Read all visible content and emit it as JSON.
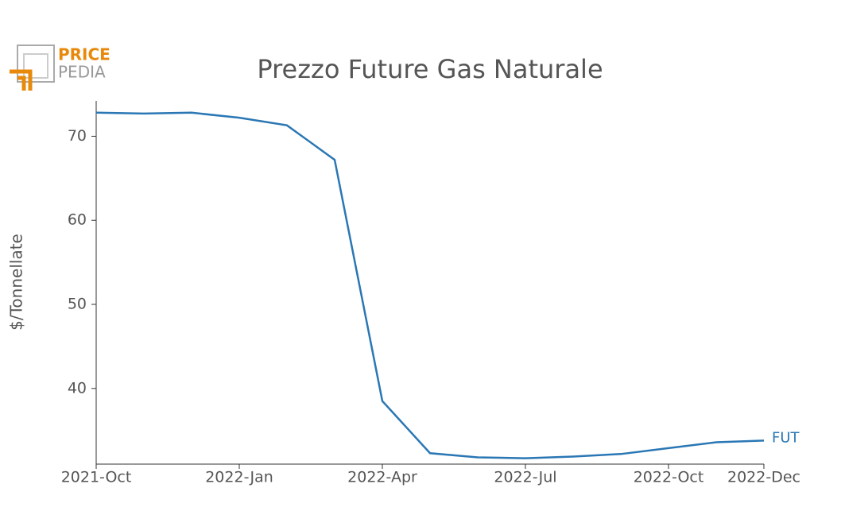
{
  "logo": {
    "top": "PRICE",
    "bottom": "PEDIA"
  },
  "chart_data": {
    "type": "line",
    "title": "Prezzo Future Gas Naturale",
    "y_label": "$/Tonnellate",
    "x": [
      "2021-10",
      "2021-11",
      "2021-12",
      "2022-01",
      "2022-02",
      "2022-03",
      "2022-04",
      "2022-05",
      "2022-06",
      "2022-07",
      "2022-08",
      "2022-09",
      "2022-10",
      "2022-11",
      "2022-12"
    ],
    "series": [
      {
        "name": "FUT",
        "color": "#2a77b4",
        "values": [
          72.8,
          72.7,
          72.8,
          72.2,
          71.3,
          67.2,
          38.5,
          32.3,
          31.8,
          31.7,
          31.9,
          32.2,
          32.9,
          33.6,
          33.8
        ]
      }
    ],
    "xlim": [
      "2021-10",
      "2022-12"
    ],
    "xticks": [
      {
        "value": "2021-10",
        "label": "2021-Oct"
      },
      {
        "value": "2022-01",
        "label": "2022-Jan"
      },
      {
        "value": "2022-04",
        "label": "2022-Apr"
      },
      {
        "value": "2022-07",
        "label": "2022-Jul"
      },
      {
        "value": "2022-10",
        "label": "2022-Oct"
      },
      {
        "value": "2022-12",
        "label": "2022-Dec"
      }
    ],
    "ylim": [
      31,
      74.2
    ],
    "yticks": [
      40,
      50,
      60,
      70
    ],
    "grid": false
  }
}
